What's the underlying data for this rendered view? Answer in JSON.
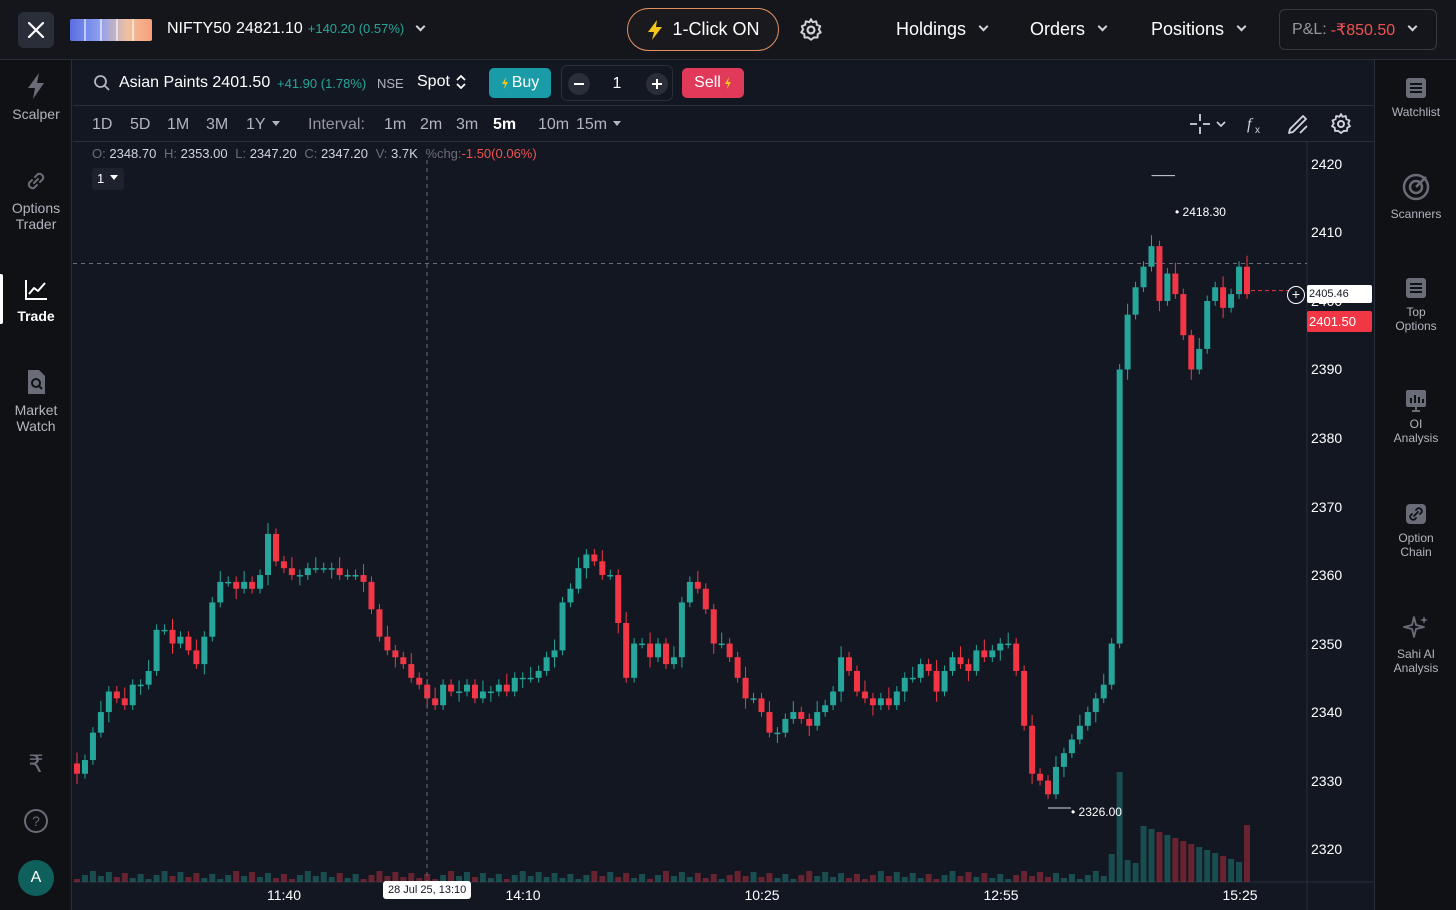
{
  "topbar": {
    "index_name": "NIFTY50",
    "index_value": "24821.10",
    "index_change": "+140.20 (0.57%)",
    "one_click_label": "1-Click ON",
    "nav": [
      "Holdings",
      "Orders",
      "Positions"
    ],
    "pnl_label": "P&L:",
    "pnl_value": "-₹850.50"
  },
  "left_sidebar": {
    "items": [
      {
        "label": "Scalper",
        "icon": "lightning-icon"
      },
      {
        "label": "Options Trader",
        "icon": "link-icon"
      },
      {
        "label": "Trade",
        "icon": "line-chart-icon",
        "active": true
      },
      {
        "label": "Market Watch",
        "icon": "document-search-icon"
      }
    ],
    "rupee_icon": "₹",
    "help_icon": "?",
    "avatar_letter": "A"
  },
  "right_sidebar": {
    "items": [
      {
        "label": "Watchlist",
        "icon": "list-icon"
      },
      {
        "label": "Scanners",
        "icon": "radar-icon"
      },
      {
        "label": "Top Options",
        "icon": "list-icon"
      },
      {
        "label": "OI Analysis",
        "icon": "bar-chart-icon"
      },
      {
        "label": "Option Chain",
        "icon": "link-icon"
      },
      {
        "label": "Sahi AI Analysis",
        "icon": "sparkle-icon"
      }
    ]
  },
  "symbol_bar": {
    "symbol": "Asian Paints",
    "price": "2401.50",
    "change": "+41.90 (1.78%)",
    "exchange": "NSE",
    "segment": "Spot",
    "buy_label": "Buy",
    "quantity": "1",
    "sell_label": "Sell"
  },
  "timeframes": {
    "ranges": [
      "1D",
      "5D",
      "1M",
      "3M",
      "1Y"
    ],
    "interval_label": "Interval:",
    "intervals": [
      "1m",
      "2m",
      "3m",
      "5m",
      "10m",
      "15m"
    ],
    "active_interval": "5m"
  },
  "ohlc": {
    "o_label": "O:",
    "o": "2348.70",
    "h_label": "H:",
    "h": "2353.00",
    "l_label": "L:",
    "l": "2347.20",
    "c_label": "C:",
    "c": "2347.20",
    "v_label": "V:",
    "v": "3.7K",
    "chg_label": "%chg:",
    "chg": "-1.50(0.06%)"
  },
  "pane_number": "1",
  "colors": {
    "up": "#26a69a",
    "down": "#f23645",
    "background": "#131722",
    "accent_buy": "#1a9ba8",
    "accent_sell": "#e0395a"
  },
  "chart_data": {
    "type": "candlestick",
    "y_ticks": [
      2420,
      2410,
      2400,
      2390,
      2380,
      2370,
      2360,
      2350,
      2340,
      2330,
      2320
    ],
    "ylim": [
      2315.2,
      2423.2
    ],
    "x_ticks": [
      "11:40",
      "14:10",
      "10:25",
      "12:55",
      "15:25"
    ],
    "crosshair_time": "28 Jul 25, 13:10",
    "crosshair_price": "2405.46",
    "last_price": "2401.50",
    "high_marker": "2418.30",
    "low_marker": "2326.00",
    "candles_close": [
      2331,
      2333,
      2337,
      2340,
      2343,
      2342,
      2341,
      2344,
      2344,
      2346,
      2352,
      2352,
      2350,
      2351,
      2349,
      2347,
      2351,
      2356,
      2359,
      2359,
      2358,
      2359,
      2358,
      2360,
      2366,
      2362,
      2361,
      2360,
      2360,
      2361,
      2361,
      2361,
      2361,
      2360,
      2360,
      2360,
      2359,
      2355,
      2351,
      2349,
      2348,
      2347,
      2345,
      2344,
      2342,
      2341,
      2344,
      2343,
      2343,
      2344,
      2342,
      2343,
      2343,
      2344,
      2343,
      2345,
      2345,
      2345,
      2346,
      2348,
      2349,
      2356,
      2358,
      2361,
      2363,
      2362,
      2360,
      2360,
      2353,
      2345,
      2350,
      2350,
      2348,
      2350,
      2347,
      2348,
      2356,
      2359,
      2358,
      2355,
      2350,
      2350,
      2348,
      2345,
      2342,
      2342,
      2340,
      2337,
      2337,
      2339,
      2340,
      2339,
      2338,
      2340,
      2341,
      2343,
      2348,
      2346,
      2343,
      2342,
      2341,
      2342,
      2341,
      2343,
      2345,
      2345,
      2347,
      2346,
      2343,
      2346,
      2348,
      2347,
      2346,
      2349,
      2348,
      2349,
      2350,
      2350,
      2346,
      2338,
      2331,
      2330,
      2328,
      2332,
      2334,
      2336,
      2338,
      2340,
      2342,
      2344,
      2350,
      2390,
      2398,
      2402,
      2405,
      2408,
      2400,
      2404,
      2401,
      2395,
      2390,
      2393,
      2400,
      2402,
      2399,
      2401,
      2405,
      2401
    ],
    "volume_note": "volume bars along bottom"
  }
}
